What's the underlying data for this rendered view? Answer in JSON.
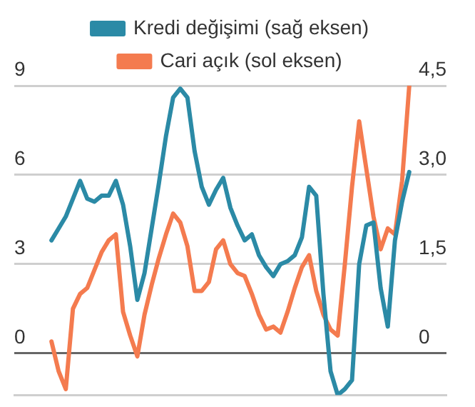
{
  "chart_data": {
    "type": "line",
    "categories": [
      null,
      null,
      null,
      null,
      null,
      null,
      null,
      null,
      null,
      null,
      null,
      null,
      null,
      null,
      null,
      null,
      null,
      null,
      null,
      null,
      null,
      null,
      null,
      null,
      null,
      null,
      null,
      null,
      null,
      null,
      null,
      null,
      null,
      null,
      null,
      null,
      null,
      null,
      null,
      null,
      null,
      null,
      null,
      null,
      null,
      null,
      null,
      null,
      null,
      null,
      null
    ],
    "series": [
      {
        "name": "Kredi değişimi (sağ eksen)",
        "color": "#2b8aa6",
        "axis": "y2",
        "values": [
          1.9,
          2.1,
          2.3,
          2.6,
          2.9,
          2.6,
          2.55,
          2.65,
          2.65,
          2.9,
          2.5,
          1.8,
          0.9,
          1.35,
          2.1,
          2.85,
          3.65,
          4.3,
          4.45,
          4.3,
          3.4,
          2.8,
          2.5,
          2.75,
          2.95,
          2.45,
          2.15,
          1.9,
          2.0,
          1.65,
          1.45,
          1.3,
          1.5,
          1.55,
          1.65,
          1.95,
          2.8,
          2.65,
          1.0,
          -0.3,
          -0.7,
          -0.6,
          -0.45,
          1.5,
          2.15,
          2.2,
          1.1,
          0.45,
          1.9,
          2.55,
          3.05
        ]
      },
      {
        "name": "Cari açık (sol eksen)",
        "color": "#f47b4f",
        "values": [
          0.4,
          -0.6,
          -1.2,
          1.5,
          2.0,
          2.2,
          2.8,
          3.4,
          3.8,
          4.0,
          1.4,
          0.6,
          -0.1,
          1.3,
          2.3,
          3.2,
          4.0,
          4.7,
          4.4,
          3.6,
          2.1,
          2.1,
          2.4,
          3.5,
          3.8,
          3.0,
          2.7,
          2.6,
          2.0,
          1.3,
          0.8,
          0.9,
          0.7,
          1.4,
          2.2,
          2.9,
          3.3,
          2.1,
          1.3,
          0.8,
          0.6,
          3.0,
          5.6,
          7.8,
          6.2,
          4.6,
          3.5,
          4.2,
          4.0,
          5.8,
          9.0
        ]
      }
    ],
    "ylim": [
      -1.4,
      9
    ],
    "yticks": [
      0,
      3,
      6,
      9
    ],
    "y2lim": [
      -0.7,
      4.5
    ],
    "y2ticks": [
      0,
      {
        "value": 1.5,
        "label": "1,5"
      },
      {
        "value": 3,
        "label": "3,0"
      },
      {
        "value": 4.5,
        "label": "4,5"
      }
    ],
    "grid": "y",
    "legend": "top",
    "marker": "none",
    "line_style": "solid"
  }
}
